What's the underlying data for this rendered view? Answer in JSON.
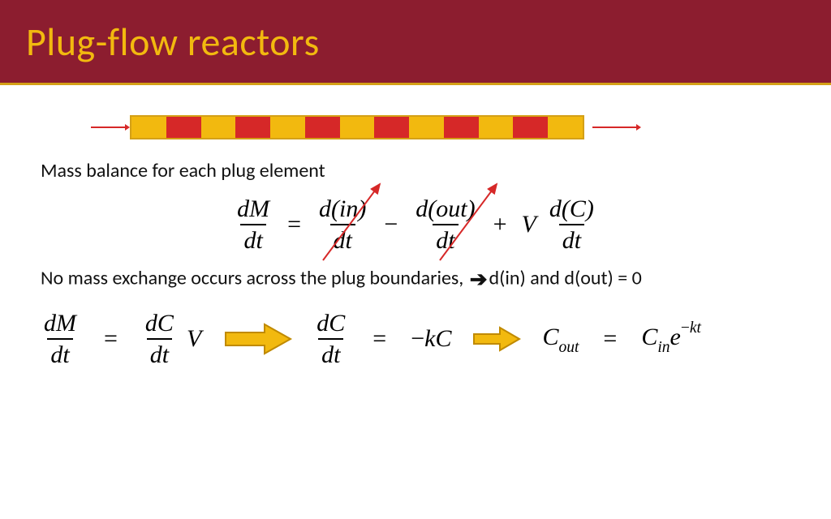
{
  "header": {
    "title": "Plug-flow reactors",
    "bg_color": "#8c1d2f",
    "title_color": "#f2b90f",
    "underline_color": "#d4a017"
  },
  "reactor": {
    "arrow_color": "#d62828",
    "border_color": "#d4a017",
    "plug_colors": [
      "#f2b90f",
      "#d62828",
      "#f2b90f",
      "#d62828",
      "#f2b90f",
      "#d62828",
      "#f2b90f",
      "#d62828",
      "#f2b90f",
      "#d62828",
      "#f2b90f",
      "#d62828",
      "#f2b90f"
    ]
  },
  "text": {
    "line1": "Mass balance for each plug element",
    "line2_a": "No mass exchange occurs across the plug boundaries, ",
    "line2_b": "d(in) and d(out) = 0"
  },
  "eq1": {
    "dM": "dM",
    "dt": "dt",
    "eq": "=",
    "din": "d(in)",
    "minus": "−",
    "dout": "d(out)",
    "plus": "+",
    "V": "V",
    "dC": "d(C)",
    "strike_color": "#d62828"
  },
  "eq2": {
    "dM": "dM",
    "dt": "dt",
    "eq": "=",
    "dC": "dC",
    "V": "V",
    "dCdt": "dC",
    "kC_eq": "=",
    "minus": "−",
    "kC": "kC",
    "Cout_C": "C",
    "Cout_sub": "out",
    "Cin_C": "C",
    "Cin_sub": "in",
    "e": "e",
    "exp_neg": "−",
    "exp_kt": "kt"
  },
  "arrows": {
    "big_fill": "#f2b90f",
    "big_stroke": "#c08a00",
    "small_fill": "#f2b90f",
    "small_stroke": "#c08a00"
  }
}
